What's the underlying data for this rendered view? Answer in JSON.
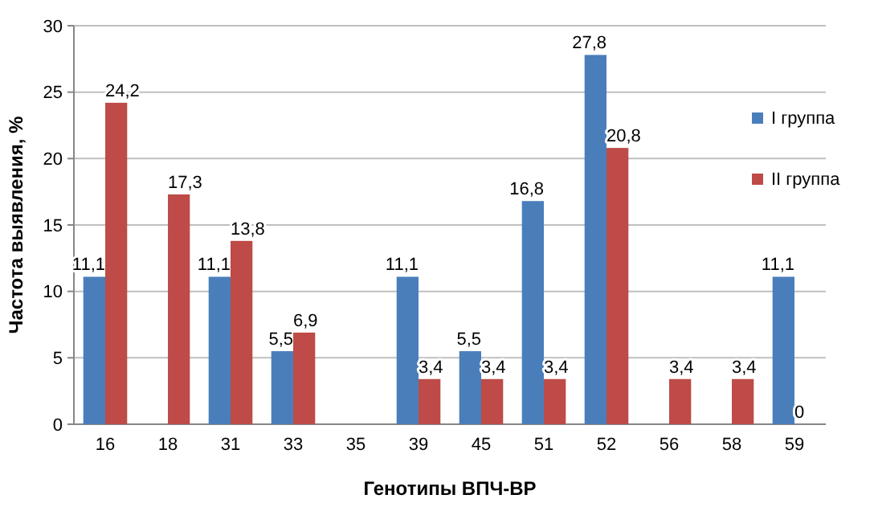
{
  "chart_data": {
    "type": "bar",
    "xlabel": "Генотипы ВПЧ-ВР",
    "ylabel": "Частота выявления, %",
    "categories": [
      "16",
      "18",
      "31",
      "33",
      "35",
      "39",
      "45",
      "51",
      "52",
      "56",
      "58",
      "59"
    ],
    "series": [
      {
        "name": "I группа",
        "color": "#4a7ebb",
        "values": [
          11.1,
          0,
          11.1,
          5.5,
          0,
          11.1,
          5.5,
          16.8,
          27.8,
          0,
          0,
          11.1
        ],
        "value_labels": [
          "11,1",
          null,
          "11,1",
          "5,5",
          null,
          "11,1",
          "5,5",
          "16,8",
          "27,8",
          null,
          null,
          "11,1"
        ]
      },
      {
        "name": "II группа",
        "color": "#be4b48",
        "values": [
          24.2,
          17.3,
          13.8,
          6.9,
          0,
          3.4,
          3.4,
          3.4,
          20.8,
          3.4,
          3.4,
          0
        ],
        "value_labels": [
          "24,2",
          "17,3",
          "13,8",
          "6,9",
          null,
          "3,4",
          "3,4",
          "3,4",
          "20,8",
          "3,4",
          "3,4",
          "0"
        ]
      }
    ],
    "ylim": [
      0,
      30
    ],
    "yticks": [
      0,
      5,
      10,
      15,
      20,
      25,
      30
    ],
    "grid": "y",
    "legend": "right"
  }
}
